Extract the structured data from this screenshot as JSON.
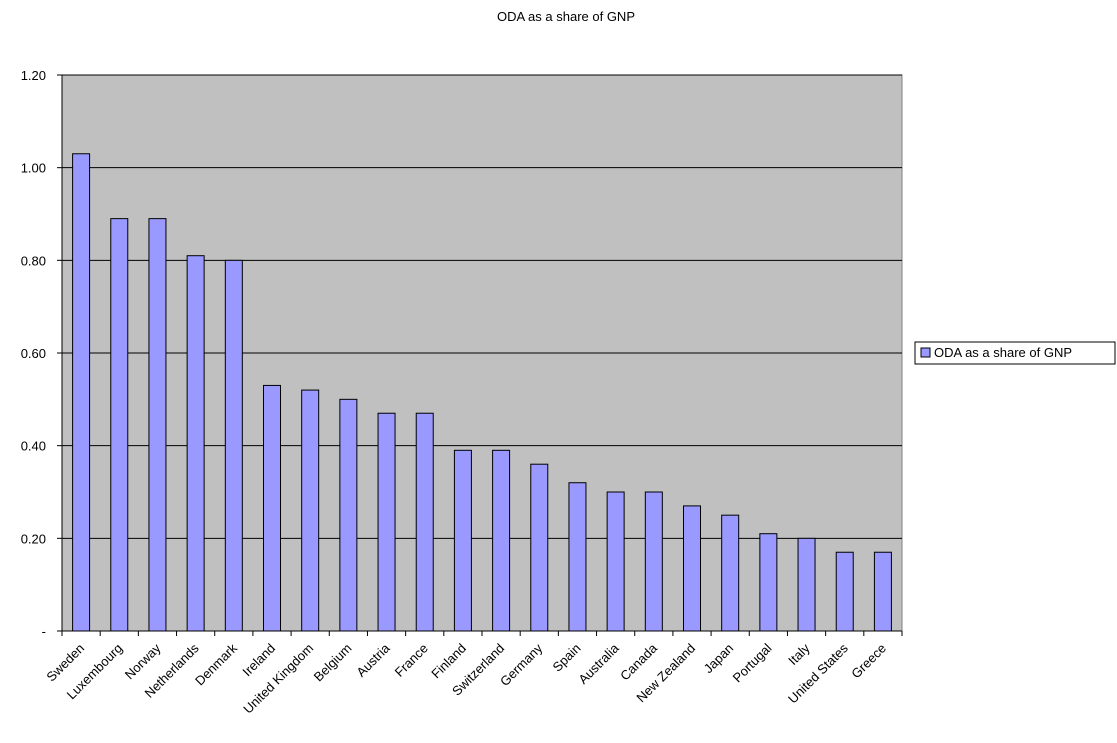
{
  "chart_data": {
    "type": "bar",
    "title": "ODA as a share of GNP",
    "xlabel": "",
    "ylabel": "",
    "categories": [
      "Sweden",
      "Luxembourg",
      "Norway",
      "Netherlands",
      "Denmark",
      "Ireland",
      "United Kingdom",
      "Belgium",
      "Austria",
      "France",
      "Finland",
      "Switzerland",
      "Germany",
      "Spain",
      "Australia",
      "Canada",
      "New Zealand",
      "Japan",
      "Portugal",
      "Italy",
      "United States",
      "Greece"
    ],
    "series": [
      {
        "name": "ODA as a share of GNP",
        "values": [
          1.03,
          0.89,
          0.89,
          0.81,
          0.8,
          0.53,
          0.52,
          0.5,
          0.47,
          0.47,
          0.39,
          0.39,
          0.36,
          0.32,
          0.3,
          0.3,
          0.27,
          0.25,
          0.21,
          0.2,
          0.17,
          0.17
        ]
      }
    ],
    "ylim": [
      0,
      1.2
    ],
    "yticks": [
      0,
      0.2,
      0.4,
      0.6,
      0.8,
      1.0,
      1.2
    ],
    "ytick_labels": [
      "-",
      "0.20",
      "0.40",
      "0.60",
      "0.80",
      "1.00",
      "1.20"
    ],
    "grid": true,
    "legend_position": "right",
    "colors": {
      "bar_fill": "#9999ff",
      "bar_stroke": "#000000",
      "plot_background": "#c0c0c0",
      "gridline": "#000000"
    }
  }
}
